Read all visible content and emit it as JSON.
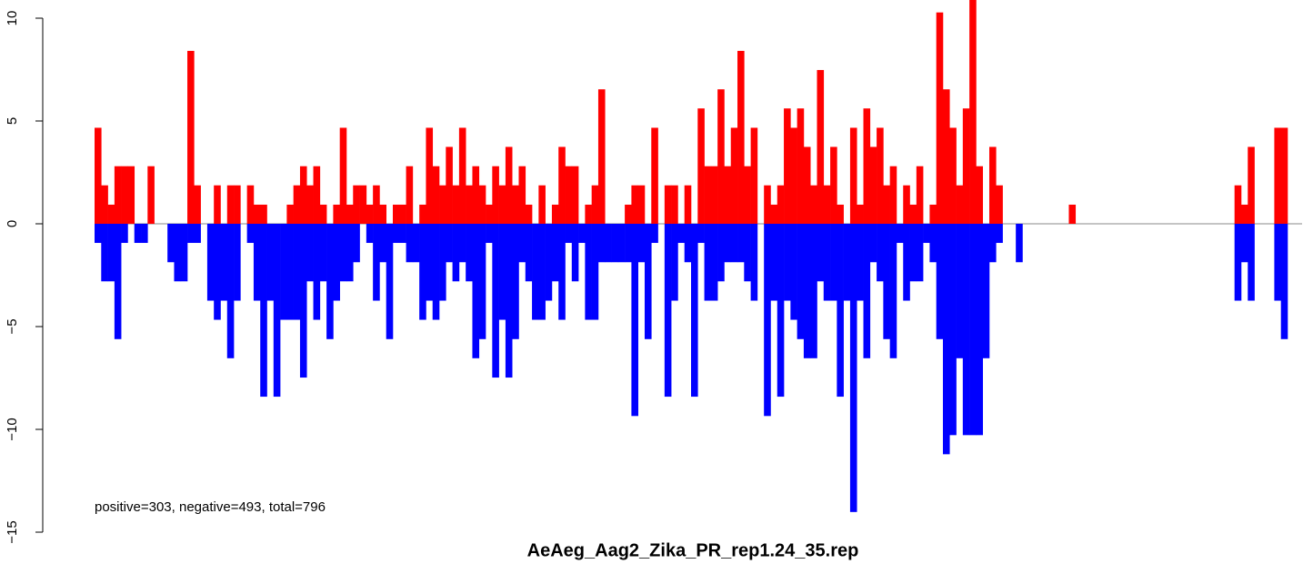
{
  "chart_data": {
    "type": "bar",
    "title": "AeAeg_Aag2_Zika_PR_rep1.24_35.rep",
    "annotation": "positive=303, negative=493, total=796",
    "ylim": [
      -15,
      10
    ],
    "yticks": [
      {
        "value": -15,
        "label": "−15"
      },
      {
        "value": -10,
        "label": "−10"
      },
      {
        "value": -5,
        "label": "−5"
      },
      0,
      5,
      10
    ],
    "series": [
      {
        "color": "#ff0000",
        "values": [
          4.67,
          1.87,
          0.93,
          2.8,
          2.8,
          2.8,
          0,
          0,
          2.8,
          0,
          0,
          0,
          0,
          0,
          8.41,
          1.87,
          0,
          0,
          1.87,
          0,
          1.87,
          1.87,
          0,
          1.87,
          0.93,
          0.93,
          0,
          0,
          0,
          0.93,
          1.87,
          2.8,
          1.87,
          2.8,
          0.93,
          0,
          0.93,
          4.67,
          0.93,
          1.87,
          1.87,
          0.93,
          1.87,
          0.93,
          0,
          0.93,
          0.93,
          2.8,
          0,
          0.93,
          4.67,
          2.8,
          1.87,
          3.74,
          1.87,
          4.67,
          1.87,
          2.8,
          1.87,
          0.93,
          2.8,
          1.87,
          3.74,
          1.87,
          2.8,
          0.93,
          0,
          1.87,
          0,
          0.93,
          3.74,
          2.8,
          2.8,
          0,
          0.93,
          1.87,
          6.54,
          0,
          0,
          0,
          0.93,
          1.87,
          1.87,
          0,
          4.67,
          0,
          1.87,
          1.87,
          0,
          1.87,
          0,
          5.61,
          2.8,
          2.8,
          6.54,
          2.8,
          4.67,
          8.41,
          2.8,
          4.67,
          0,
          1.87,
          0.93,
          1.87,
          5.61,
          4.67,
          5.61,
          3.74,
          1.87,
          7.48,
          1.87,
          3.74,
          0.93,
          0,
          4.67,
          0.93,
          5.61,
          3.74,
          4.67,
          1.87,
          2.8,
          0,
          1.87,
          0.93,
          2.8,
          0,
          0.93,
          10.28,
          6.54,
          4.67,
          1.87,
          5.61,
          11.21,
          2.8,
          0,
          3.74,
          1.87,
          0,
          0,
          0,
          0,
          0,
          0,
          0,
          0,
          0,
          0,
          0.93,
          0,
          0,
          0,
          0,
          0,
          0,
          0,
          0,
          0,
          0,
          0,
          0,
          0,
          0,
          0,
          0,
          0,
          0,
          0,
          0,
          0,
          0,
          0,
          0,
          1.87,
          0.93,
          3.74,
          0,
          0,
          0,
          4.67,
          4.67
        ]
      },
      {
        "color": "#0000ff",
        "values": [
          -0.93,
          -2.8,
          -2.8,
          -5.61,
          -0.93,
          0,
          -0.93,
          -0.93,
          0,
          0,
          0,
          -1.87,
          -2.8,
          -2.8,
          -0.93,
          -0.93,
          0,
          -3.74,
          -4.67,
          -3.74,
          -6.54,
          -3.74,
          0,
          -0.93,
          -3.74,
          -8.41,
          -3.74,
          -8.41,
          -4.67,
          -4.67,
          -4.67,
          -7.48,
          -2.8,
          -4.67,
          -2.8,
          -5.61,
          -3.74,
          -2.8,
          -2.8,
          -1.87,
          0,
          -0.93,
          -3.74,
          -1.87,
          -5.61,
          -0.93,
          -0.93,
          -1.87,
          -1.87,
          -4.67,
          -3.74,
          -4.67,
          -3.74,
          -1.87,
          -2.8,
          -1.87,
          -2.8,
          -6.54,
          -5.61,
          -0.93,
          -7.48,
          -4.67,
          -7.48,
          -5.61,
          -1.87,
          -2.8,
          -4.67,
          -4.67,
          -3.74,
          -2.8,
          -4.67,
          -0.93,
          -2.8,
          -0.93,
          -4.67,
          -4.67,
          -1.87,
          -1.87,
          -1.87,
          -1.87,
          -1.87,
          -9.35,
          -1.87,
          -5.61,
          -0.93,
          0,
          -8.41,
          -3.74,
          -0.93,
          -1.87,
          -8.41,
          -0.93,
          -3.74,
          -3.74,
          -2.8,
          -1.87,
          -1.87,
          -1.87,
          -2.8,
          -3.74,
          0,
          -9.35,
          -3.74,
          -8.41,
          -3.74,
          -4.67,
          -5.61,
          -6.54,
          -6.54,
          -2.8,
          -3.74,
          -3.74,
          -8.41,
          -3.74,
          -14.02,
          -3.74,
          -6.54,
          -1.87,
          -2.8,
          -5.61,
          -6.54,
          -0.93,
          -3.74,
          -2.8,
          -2.8,
          -0.93,
          -1.87,
          -5.61,
          -11.21,
          -10.28,
          -6.54,
          -10.28,
          -10.28,
          -10.28,
          -6.54,
          -1.87,
          -0.93,
          0,
          0,
          -1.87,
          0,
          0,
          0,
          0,
          0,
          0,
          0,
          0,
          0,
          0,
          0,
          0,
          0,
          0,
          0,
          0,
          0,
          0,
          0,
          0,
          0,
          0,
          0,
          0,
          0,
          0,
          0,
          0,
          0,
          0,
          0,
          0,
          -3.74,
          -1.87,
          -3.74,
          0,
          0,
          0,
          -3.74,
          -5.61
        ]
      }
    ]
  }
}
